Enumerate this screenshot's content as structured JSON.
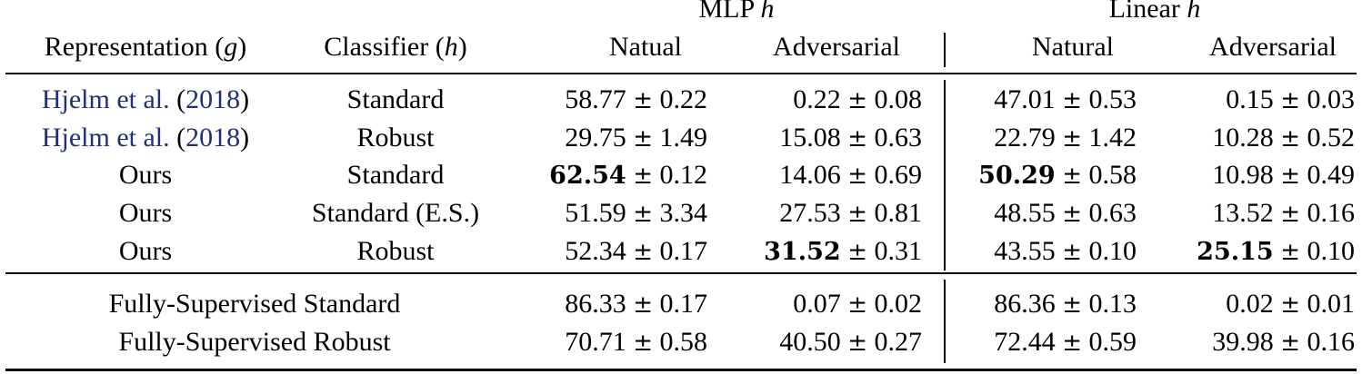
{
  "header": {
    "group_mlp": "MLP",
    "group_linear": "Linear",
    "h_symbol": "h",
    "g_symbol": "g",
    "col_representation": "Representation",
    "col_classifier": "Classifier",
    "col_natural_mlp": "Natual",
    "col_adversarial_mlp": "Adversarial",
    "col_natural_linear": "Natural",
    "col_adversarial_linear": "Adversarial"
  },
  "pm": "±",
  "rows": [
    {
      "representation": "Hjelm et al. (2018)",
      "rep_author": "Hjelm et al. ",
      "rep_year": "2018",
      "classifier": "Standard",
      "mlp_nat": "58.77",
      "mlp_nat_sd": "0.22",
      "mlp_adv": "0.22",
      "mlp_adv_sd": "0.08",
      "lin_nat": "47.01",
      "lin_nat_sd": "0.53",
      "lin_adv": "0.15",
      "lin_adv_sd": "0.03"
    },
    {
      "representation": "Hjelm et al. (2018)",
      "rep_author": "Hjelm et al. ",
      "rep_year": "2018",
      "classifier": "Robust",
      "mlp_nat": "29.75",
      "mlp_nat_sd": "1.49",
      "mlp_adv": "15.08",
      "mlp_adv_sd": "0.63",
      "lin_nat": "22.79",
      "lin_nat_sd": "1.42",
      "lin_adv": "10.28",
      "lin_adv_sd": "0.52"
    },
    {
      "representation": "Ours",
      "classifier": "Standard",
      "mlp_nat": "62.54",
      "mlp_nat_sd": "0.12",
      "mlp_adv": "14.06",
      "mlp_adv_sd": "0.69",
      "lin_nat": "50.29",
      "lin_nat_sd": "0.58",
      "lin_adv": "10.98",
      "lin_adv_sd": "0.49"
    },
    {
      "representation": "Ours",
      "classifier": "Standard (E.S.)",
      "mlp_nat": "51.59",
      "mlp_nat_sd": "3.34",
      "mlp_adv": "27.53",
      "mlp_adv_sd": "0.81",
      "lin_nat": "48.55",
      "lin_nat_sd": "0.63",
      "lin_adv": "13.52",
      "lin_adv_sd": "0.16"
    },
    {
      "representation": "Ours",
      "classifier": "Robust",
      "mlp_nat": "52.34",
      "mlp_nat_sd": "0.17",
      "mlp_adv": "31.52",
      "mlp_adv_sd": "0.31",
      "lin_nat": "43.55",
      "lin_nat_sd": "0.10",
      "lin_adv": "25.15",
      "lin_adv_sd": "0.10"
    }
  ],
  "supervised_rows": [
    {
      "label": "Fully-Supervised Standard",
      "mlp_nat": "86.33",
      "mlp_nat_sd": "0.17",
      "mlp_adv": "0.07",
      "mlp_adv_sd": "0.02",
      "lin_nat": "86.36",
      "lin_nat_sd": "0.13",
      "lin_adv": "0.02",
      "lin_adv_sd": "0.01"
    },
    {
      "label": "Fully-Supervised Robust",
      "mlp_nat": "70.71",
      "mlp_nat_sd": "0.58",
      "mlp_adv": "40.50",
      "mlp_adv_sd": "0.27",
      "lin_nat": "72.44",
      "lin_nat_sd": "0.59",
      "lin_adv": "39.98",
      "lin_adv_sd": "0.16"
    }
  ],
  "colors": {
    "citation_link": "#1f2f7a",
    "text": "#000000"
  }
}
